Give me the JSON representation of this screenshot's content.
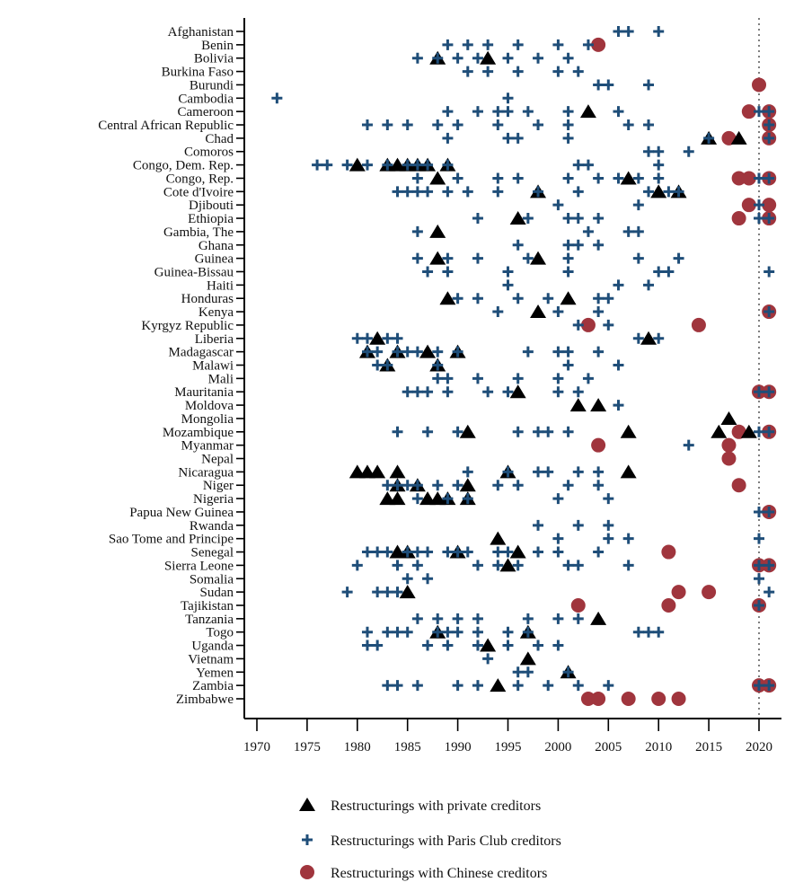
{
  "chart_data": {
    "type": "scatter",
    "title": "",
    "xlabel": "",
    "ylabel": "",
    "xlim": [
      1967,
      2022
    ],
    "xticks": [
      1970,
      1975,
      1980,
      1985,
      1990,
      1995,
      2000,
      2005,
      2010,
      2015,
      2020
    ],
    "reference_line": {
      "x": 2020,
      "style": "dotted"
    },
    "grid": false,
    "legend_position": "bottom",
    "colors": {
      "private": "#000000",
      "paris": "#1f4e79",
      "chinese": "#a0353d",
      "refline": "#555555"
    },
    "legend": [
      {
        "key": "private",
        "label": "Restructurings with private creditors",
        "marker": "triangle"
      },
      {
        "key": "paris",
        "label": "Restructurings with Paris Club creditors",
        "marker": "plus"
      },
      {
        "key": "chinese",
        "label": "Restructurings with Chinese creditors",
        "marker": "circle"
      }
    ],
    "countries": [
      {
        "name": "Afghanistan",
        "paris": [
          2006,
          2007,
          2010
        ],
        "private": [],
        "chinese": []
      },
      {
        "name": "Benin",
        "paris": [
          1989,
          1991,
          1993,
          1996,
          2000,
          2003
        ],
        "private": [],
        "chinese": [
          2004
        ]
      },
      {
        "name": "Bolivia",
        "paris": [
          1986,
          1988,
          1990,
          1992,
          1995,
          1998,
          2001
        ],
        "private": [
          1988,
          1993
        ],
        "chinese": []
      },
      {
        "name": "Burkina Faso",
        "paris": [
          1991,
          1993,
          1996,
          2000,
          2002
        ],
        "private": [],
        "chinese": []
      },
      {
        "name": "Burundi",
        "paris": [
          2004,
          2005,
          2009
        ],
        "private": [],
        "chinese": [
          2020
        ]
      },
      {
        "name": "Cambodia",
        "paris": [
          1972,
          1995
        ],
        "private": [],
        "chinese": []
      },
      {
        "name": "Cameroon",
        "paris": [
          1989,
          1992,
          1994,
          1995,
          1997,
          2001,
          2006,
          2020,
          2021
        ],
        "private": [
          2003
        ],
        "chinese": [
          2019,
          2021
        ]
      },
      {
        "name": "Central African Republic",
        "paris": [
          1981,
          1983,
          1985,
          1988,
          1990,
          1994,
          1998,
          2001,
          2007,
          2009,
          2021
        ],
        "private": [],
        "chinese": [
          2021
        ]
      },
      {
        "name": "Chad",
        "paris": [
          1989,
          1995,
          1996,
          2001,
          2015,
          2021
        ],
        "private": [
          2015,
          2018
        ],
        "chinese": [
          2017,
          2021
        ]
      },
      {
        "name": "Comoros",
        "paris": [
          2009,
          2010,
          2013
        ],
        "private": [],
        "chinese": []
      },
      {
        "name": "Congo, Dem. Rep.",
        "paris": [
          1976,
          1977,
          1979,
          1981,
          1983,
          1985,
          1986,
          1987,
          1989,
          2002,
          2003,
          2010
        ],
        "private": [
          1980,
          1983,
          1984,
          1985,
          1986,
          1987,
          1989
        ],
        "chinese": []
      },
      {
        "name": "Congo, Rep.",
        "paris": [
          1986,
          1990,
          1994,
          1996,
          2001,
          2004,
          2006,
          2008,
          2010,
          2020,
          2021
        ],
        "private": [
          1988,
          2007
        ],
        "chinese": [
          2018,
          2019,
          2021
        ]
      },
      {
        "name": "Cote d'Ivoire",
        "paris": [
          1984,
          1985,
          1986,
          1987,
          1989,
          1991,
          1994,
          1998,
          2002,
          2009,
          2011,
          2012
        ],
        "private": [
          1998,
          2010,
          2012
        ],
        "chinese": []
      },
      {
        "name": "Djibouti",
        "paris": [
          2000,
          2008,
          2020
        ],
        "private": [],
        "chinese": [
          2019,
          2021
        ]
      },
      {
        "name": "Ethiopia",
        "paris": [
          1992,
          1997,
          2001,
          2002,
          2004,
          2020,
          2021
        ],
        "private": [
          1996
        ],
        "chinese": [
          2018,
          2021
        ]
      },
      {
        "name": "Gambia, The",
        "paris": [
          1986,
          2003,
          2007,
          2008
        ],
        "private": [
          1988
        ],
        "chinese": []
      },
      {
        "name": "Ghana",
        "paris": [
          1996,
          2001,
          2002,
          2004
        ],
        "private": [],
        "chinese": []
      },
      {
        "name": "Guinea",
        "paris": [
          1986,
          1989,
          1992,
          1997,
          2001,
          2008,
          2012
        ],
        "private": [
          1988,
          1998
        ],
        "chinese": []
      },
      {
        "name": "Guinea-Bissau",
        "paris": [
          1987,
          1989,
          1995,
          2001,
          2010,
          2011,
          2021
        ],
        "private": [],
        "chinese": []
      },
      {
        "name": "Haiti",
        "paris": [
          1995,
          2006,
          2009
        ],
        "private": [],
        "chinese": []
      },
      {
        "name": "Honduras",
        "paris": [
          1990,
          1992,
          1996,
          1999,
          2004,
          2005
        ],
        "private": [
          1989,
          2001
        ],
        "chinese": []
      },
      {
        "name": "Kenya",
        "paris": [
          1994,
          2000,
          2004,
          2021
        ],
        "private": [
          1998
        ],
        "chinese": [
          2021
        ]
      },
      {
        "name": "Kyrgyz Republic",
        "paris": [
          2002,
          2005
        ],
        "private": [],
        "chinese": [
          2003,
          2014
        ]
      },
      {
        "name": "Liberia",
        "paris": [
          1980,
          1981,
          1983,
          1984,
          2008,
          2010
        ],
        "private": [
          1982,
          2009
        ],
        "chinese": []
      },
      {
        "name": "Madagascar",
        "paris": [
          1981,
          1982,
          1984,
          1985,
          1986,
          1988,
          1990,
          1997,
          2000,
          2001,
          2004
        ],
        "private": [
          1981,
          1984,
          1987,
          1990
        ],
        "chinese": []
      },
      {
        "name": "Malawi",
        "paris": [
          1982,
          1983,
          1988,
          2001,
          2006
        ],
        "private": [
          1983,
          1988
        ],
        "chinese": []
      },
      {
        "name": "Mali",
        "paris": [
          1988,
          1989,
          1992,
          1996,
          2000,
          2003
        ],
        "private": [],
        "chinese": []
      },
      {
        "name": "Mauritania",
        "paris": [
          1985,
          1986,
          1987,
          1989,
          1993,
          1995,
          2000,
          2002,
          2020,
          2021
        ],
        "private": [
          1996
        ],
        "chinese": [
          2020,
          2021
        ]
      },
      {
        "name": "Moldova",
        "paris": [
          2006
        ],
        "private": [
          2002,
          2004
        ],
        "chinese": []
      },
      {
        "name": "Mongolia",
        "paris": [],
        "private": [
          2017
        ],
        "chinese": []
      },
      {
        "name": "Mozambique",
        "paris": [
          1984,
          1987,
          1990,
          1996,
          1998,
          1999,
          2001,
          2020,
          2021
        ],
        "private": [
          1991,
          2007,
          2016,
          2019
        ],
        "chinese": [
          2018,
          2021
        ]
      },
      {
        "name": "Myanmar",
        "paris": [
          2013
        ],
        "private": [],
        "chinese": [
          2004,
          2017
        ]
      },
      {
        "name": "Nepal",
        "paris": [],
        "private": [],
        "chinese": [
          2017
        ]
      },
      {
        "name": "Nicaragua",
        "paris": [
          1991,
          1995,
          1998,
          1999,
          2002,
          2004
        ],
        "private": [
          1980,
          1981,
          1982,
          1984,
          1995,
          2007
        ],
        "chinese": []
      },
      {
        "name": "Niger",
        "paris": [
          1983,
          1984,
          1985,
          1986,
          1988,
          1990,
          1994,
          1996,
          2001,
          2004
        ],
        "private": [
          1984,
          1986,
          1991
        ],
        "chinese": [
          2018
        ]
      },
      {
        "name": "Nigeria",
        "paris": [
          1986,
          1989,
          1991,
          2000,
          2005
        ],
        "private": [
          1983,
          1984,
          1987,
          1988,
          1989,
          1991
        ],
        "chinese": []
      },
      {
        "name": "Papua New Guinea",
        "paris": [
          2020,
          2021
        ],
        "private": [],
        "chinese": [
          2021
        ]
      },
      {
        "name": "Rwanda",
        "paris": [
          1998,
          2002,
          2005
        ],
        "private": [],
        "chinese": []
      },
      {
        "name": "Sao Tome and Principe",
        "paris": [
          2000,
          2005,
          2007,
          2020
        ],
        "private": [
          1994
        ],
        "chinese": []
      },
      {
        "name": "Senegal",
        "paris": [
          1981,
          1982,
          1983,
          1985,
          1986,
          1987,
          1989,
          1990,
          1991,
          1994,
          1995,
          1998,
          2000,
          2004
        ],
        "private": [
          1984,
          1985,
          1990,
          1996
        ],
        "chinese": [
          2011
        ]
      },
      {
        "name": "Sierra Leone",
        "paris": [
          1980,
          1984,
          1986,
          1992,
          1994,
          1996,
          2001,
          2002,
          2007,
          2020,
          2021
        ],
        "private": [
          1995
        ],
        "chinese": [
          2020,
          2021
        ]
      },
      {
        "name": "Somalia",
        "paris": [
          1985,
          1987,
          2020
        ],
        "private": [],
        "chinese": []
      },
      {
        "name": "Sudan",
        "paris": [
          1979,
          1982,
          1983,
          1984,
          2021
        ],
        "private": [
          1985
        ],
        "chinese": [
          2012,
          2015
        ]
      },
      {
        "name": "Tajikistan",
        "paris": [
          2020
        ],
        "private": [],
        "chinese": [
          2002,
          2011,
          2020
        ]
      },
      {
        "name": "Tanzania",
        "paris": [
          1986,
          1988,
          1990,
          1992,
          1997,
          2000,
          2002
        ],
        "private": [
          2004
        ],
        "chinese": []
      },
      {
        "name": "Togo",
        "paris": [
          1981,
          1983,
          1984,
          1985,
          1988,
          1989,
          1990,
          1992,
          1995,
          1997,
          2008,
          2009,
          2010
        ],
        "private": [
          1988,
          1997
        ],
        "chinese": []
      },
      {
        "name": "Uganda",
        "paris": [
          1981,
          1982,
          1987,
          1989,
          1992,
          1995,
          1998,
          2000
        ],
        "private": [
          1993
        ],
        "chinese": []
      },
      {
        "name": "Vietnam",
        "paris": [
          1993
        ],
        "private": [
          1997
        ],
        "chinese": []
      },
      {
        "name": "Yemen",
        "paris": [
          1996,
          1997,
          2001
        ],
        "private": [
          2001
        ],
        "chinese": []
      },
      {
        "name": "Zambia",
        "paris": [
          1983,
          1984,
          1986,
          1990,
          1992,
          1996,
          1999,
          2002,
          2005,
          2020,
          2021
        ],
        "private": [
          1994
        ],
        "chinese": [
          2020,
          2021
        ]
      },
      {
        "name": "Zimbabwe",
        "paris": [],
        "private": [],
        "chinese": [
          2003,
          2004,
          2007,
          2010,
          2012
        ]
      }
    ]
  }
}
